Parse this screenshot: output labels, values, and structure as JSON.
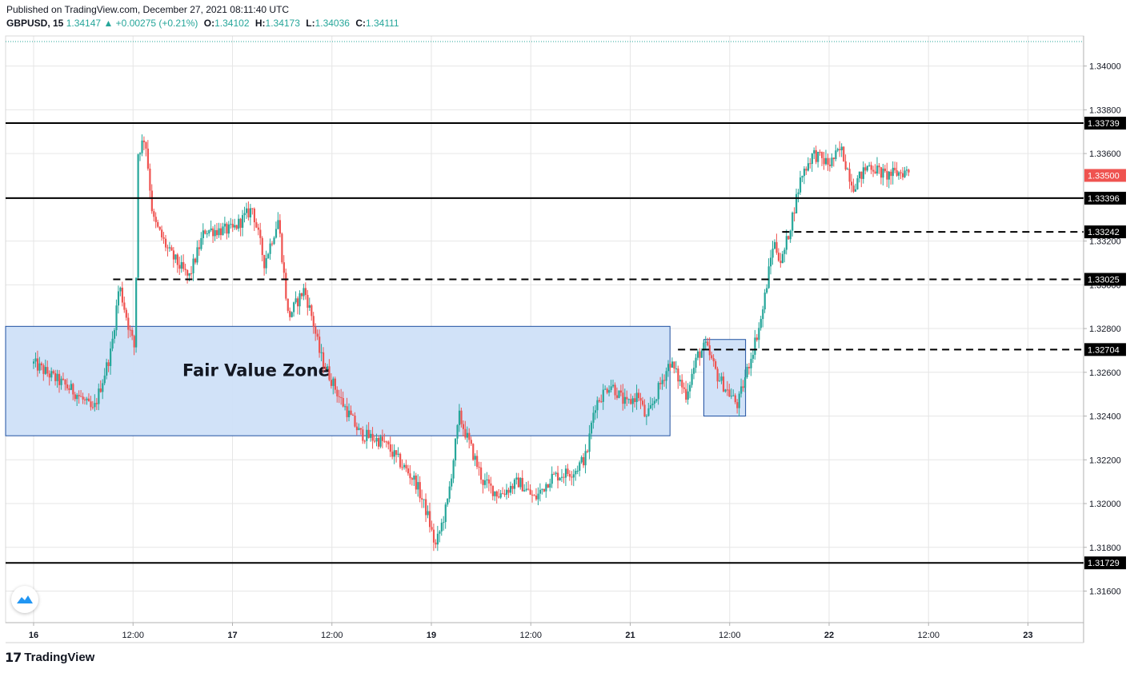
{
  "header": {
    "published": "Published on TradingView.com, December 27, 2021 08:11:40 UTC"
  },
  "legend": {
    "symbol": "GBPUSD, 15",
    "last": "1.34147",
    "change": "+0.00275 (+0.21%)",
    "open_label": "O:",
    "open": "1.34102",
    "high_label": "H:",
    "high": "1.34173",
    "low_label": "L:",
    "low": "1.34036",
    "close_label": "C:",
    "close": "1.34111"
  },
  "footer": {
    "brand": "TradingView",
    "logo": "17"
  },
  "colors": {
    "up": "#26a69a",
    "down": "#ef5350",
    "zone_fill": "#cfe0f8",
    "zone_stroke": "#1e4fa0",
    "grid": "#e6e6e6"
  },
  "chart_data": {
    "type": "candlestick",
    "symbol": "GBPUSD",
    "timeframe": "15",
    "ylim": [
      1.3153,
      1.3412
    ],
    "y_ticks": [
      "1.31600",
      "1.31800",
      "1.32000",
      "1.32200",
      "1.32400",
      "1.32600",
      "1.32800",
      "1.33000",
      "1.33200",
      "1.33400",
      "1.33600",
      "1.33800",
      "1.34000"
    ],
    "x_ticks": [
      "16",
      "12:00",
      "17",
      "12:00",
      "19",
      "12:00",
      "21",
      "12:00",
      "22",
      "12:00",
      "23"
    ],
    "last_price": "1.33500",
    "key_points": [
      {
        "t": 0.0,
        "price": 1.3264
      },
      {
        "t": 0.11,
        "price": 1.325
      },
      {
        "t": 0.15,
        "price": 1.3242
      },
      {
        "t": 0.195,
        "price": 1.327
      },
      {
        "t": 0.215,
        "price": 1.33
      },
      {
        "t": 0.24,
        "price": 1.328
      },
      {
        "t": 0.255,
        "price": 1.327
      },
      {
        "t": 0.262,
        "price": 1.336
      },
      {
        "t": 0.28,
        "price": 1.3368
      },
      {
        "t": 0.3,
        "price": 1.333
      },
      {
        "t": 0.34,
        "price": 1.3315
      },
      {
        "t": 0.39,
        "price": 1.3303
      },
      {
        "t": 0.43,
        "price": 1.3325
      },
      {
        "t": 0.5,
        "price": 1.3325
      },
      {
        "t": 0.55,
        "price": 1.3335
      },
      {
        "t": 0.58,
        "price": 1.331
      },
      {
        "t": 0.615,
        "price": 1.333
      },
      {
        "t": 0.64,
        "price": 1.3285
      },
      {
        "t": 0.68,
        "price": 1.3298
      },
      {
        "t": 0.7,
        "price": 1.3285
      },
      {
        "t": 0.72,
        "price": 1.3268
      },
      {
        "t": 0.77,
        "price": 1.3248
      },
      {
        "t": 0.82,
        "price": 1.3232
      },
      {
        "t": 0.88,
        "price": 1.3228
      },
      {
        "t": 0.96,
        "price": 1.321
      },
      {
        "t": 0.99,
        "price": 1.3195
      },
      {
        "t": 1.01,
        "price": 1.318
      },
      {
        "t": 1.04,
        "price": 1.32
      },
      {
        "t": 1.07,
        "price": 1.324
      },
      {
        "t": 1.1,
        "price": 1.3225
      },
      {
        "t": 1.13,
        "price": 1.321
      },
      {
        "t": 1.17,
        "price": 1.3204
      },
      {
        "t": 1.22,
        "price": 1.321
      },
      {
        "t": 1.26,
        "price": 1.3202
      },
      {
        "t": 1.3,
        "price": 1.3212
      },
      {
        "t": 1.36,
        "price": 1.3215
      },
      {
        "t": 1.39,
        "price": 1.3222
      },
      {
        "t": 1.41,
        "price": 1.3245
      },
      {
        "t": 1.45,
        "price": 1.3255
      },
      {
        "t": 1.49,
        "price": 1.3245
      },
      {
        "t": 1.52,
        "price": 1.325
      },
      {
        "t": 1.54,
        "price": 1.3238
      },
      {
        "t": 1.57,
        "price": 1.3252
      },
      {
        "t": 1.6,
        "price": 1.3265
      },
      {
        "t": 1.64,
        "price": 1.325
      },
      {
        "t": 1.67,
        "price": 1.3268
      },
      {
        "t": 1.69,
        "price": 1.3272
      },
      {
        "t": 1.72,
        "price": 1.3258
      },
      {
        "t": 1.75,
        "price": 1.325
      },
      {
        "t": 1.77,
        "price": 1.3245
      },
      {
        "t": 1.8,
        "price": 1.3265
      },
      {
        "t": 1.83,
        "price": 1.3285
      },
      {
        "t": 1.86,
        "price": 1.332
      },
      {
        "t": 1.88,
        "price": 1.331
      },
      {
        "t": 1.9,
        "price": 1.3325
      },
      {
        "t": 1.93,
        "price": 1.335
      },
      {
        "t": 1.96,
        "price": 1.336
      },
      {
        "t": 2.0,
        "price": 1.3355
      },
      {
        "t": 2.03,
        "price": 1.3362
      },
      {
        "t": 2.06,
        "price": 1.3345
      },
      {
        "t": 2.1,
        "price": 1.3355
      },
      {
        "t": 2.14,
        "price": 1.335
      },
      {
        "t": 2.2,
        "price": 1.3352
      }
    ],
    "levels": [
      {
        "price": 1.33739,
        "style": "solid",
        "label": "1.33739"
      },
      {
        "price": 1.33396,
        "style": "solid",
        "label": "1.33396"
      },
      {
        "price": 1.33242,
        "style": "dashed",
        "label": "1.33242",
        "from_t": 1.882
      },
      {
        "price": 1.33025,
        "style": "dashed",
        "label": "1.33025",
        "from_t": 0.2
      },
      {
        "price": 1.32704,
        "style": "dashed",
        "label": "1.32704",
        "from_t": 1.62
      },
      {
        "price": 1.31729,
        "style": "solid",
        "label": "1.31729"
      }
    ],
    "zones": [
      {
        "label": "Fair Value Zone",
        "from_t": 0.0,
        "to_t": 1.6,
        "top": 1.3281,
        "bottom": 1.3231
      },
      {
        "label": "",
        "from_t": 1.685,
        "to_t": 1.79,
        "top": 1.3275,
        "bottom": 1.324
      }
    ]
  }
}
